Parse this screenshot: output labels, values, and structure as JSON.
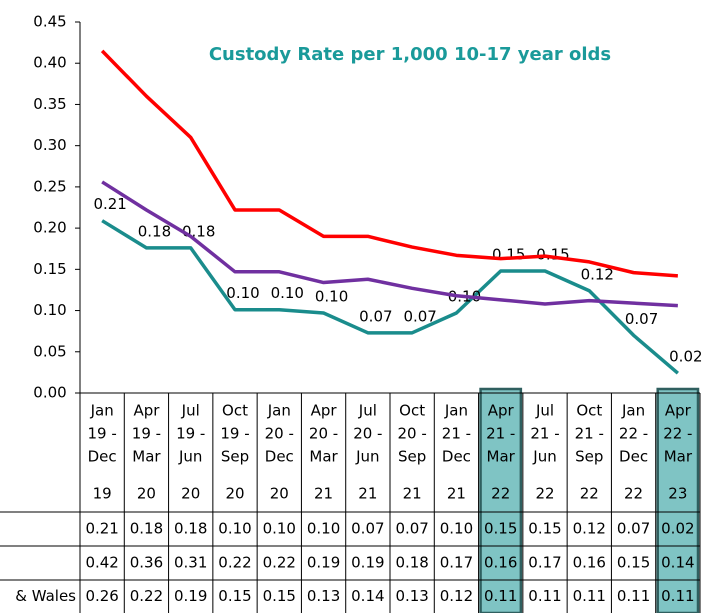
{
  "chart_data": {
    "type": "line",
    "title": "Custody Rate per 1,000 10-17 year olds",
    "categories": [
      [
        "Jan",
        "19 -",
        "Dec",
        "19"
      ],
      [
        "Apr",
        "19 -",
        "Mar",
        "20"
      ],
      [
        "Jul",
        "19 -",
        "Jun",
        "20"
      ],
      [
        "Oct",
        "19 -",
        "Sep",
        "20"
      ],
      [
        "Jan",
        "20 -",
        "Dec",
        "20"
      ],
      [
        "Apr",
        "20 -",
        "Mar",
        "21"
      ],
      [
        "Jul",
        "20 -",
        "Jun",
        "21"
      ],
      [
        "Oct",
        "20 -",
        "Sep",
        "21"
      ],
      [
        "Jan",
        "21 -",
        "Dec",
        "21"
      ],
      [
        "Apr",
        "21 -",
        "Mar",
        "22"
      ],
      [
        "Jul",
        "21 -",
        "Jun",
        "22"
      ],
      [
        "Oct",
        "21 -",
        "Sep",
        "22"
      ],
      [
        "Jan",
        "22 -",
        "Dec",
        "22"
      ],
      [
        "Apr",
        "22 -",
        "Mar",
        "23"
      ]
    ],
    "series": [
      {
        "color": "#1a8c8c",
        "data_labels": true,
        "values": [
          0.209,
          0.176,
          0.176,
          0.101,
          0.101,
          0.097,
          0.073,
          0.073,
          0.097,
          0.148,
          0.148,
          0.124,
          0.07,
          0.024
        ],
        "value_labels": [
          "0.21",
          "0.18",
          "0.18",
          "0.10",
          "0.10",
          "0.10",
          "0.07",
          "0.07",
          "0.10",
          "0.15",
          "0.15",
          "0.12",
          "0.07",
          "0.02"
        ]
      },
      {
        "color": "#ff0000",
        "data_labels": false,
        "values": [
          0.415,
          0.36,
          0.31,
          0.222,
          0.222,
          0.19,
          0.19,
          0.177,
          0.167,
          0.163,
          0.166,
          0.159,
          0.146,
          0.142
        ],
        "value_labels": [
          "0.42",
          "0.36",
          "0.31",
          "0.22",
          "0.22",
          "0.19",
          "0.19",
          "0.18",
          "0.17",
          "0.16",
          "0.17",
          "0.16",
          "0.15",
          "0.14"
        ]
      },
      {
        "name": "& Wales",
        "color": "#7030a0",
        "data_labels": false,
        "values": [
          0.256,
          0.222,
          0.19,
          0.147,
          0.147,
          0.134,
          0.138,
          0.127,
          0.118,
          0.113,
          0.108,
          0.112,
          0.109,
          0.106
        ],
        "value_labels": [
          "0.26",
          "0.22",
          "0.19",
          "0.15",
          "0.15",
          "0.13",
          "0.14",
          "0.13",
          "0.12",
          "0.11",
          "0.11",
          "0.11",
          "0.11",
          "0.11"
        ]
      }
    ],
    "ylim": [
      0,
      0.45
    ],
    "yticks": [
      {
        "value": 0,
        "label": "0.00"
      },
      {
        "value": 0.05,
        "label": "0.05"
      },
      {
        "value": 0.1,
        "label": "0.10"
      },
      {
        "value": 0.15,
        "label": "0.15"
      },
      {
        "value": 0.2,
        "label": "0.20"
      },
      {
        "value": 0.25,
        "label": "0.25"
      },
      {
        "value": 0.3,
        "label": "0.30"
      },
      {
        "value": 0.35,
        "label": "0.35"
      },
      {
        "value": 0.4,
        "label": "0.40"
      },
      {
        "value": 0.45,
        "label": "0.45"
      }
    ],
    "grid": false,
    "highlight": [
      9,
      13
    ],
    "highlight_color": "#7fc4c4"
  }
}
